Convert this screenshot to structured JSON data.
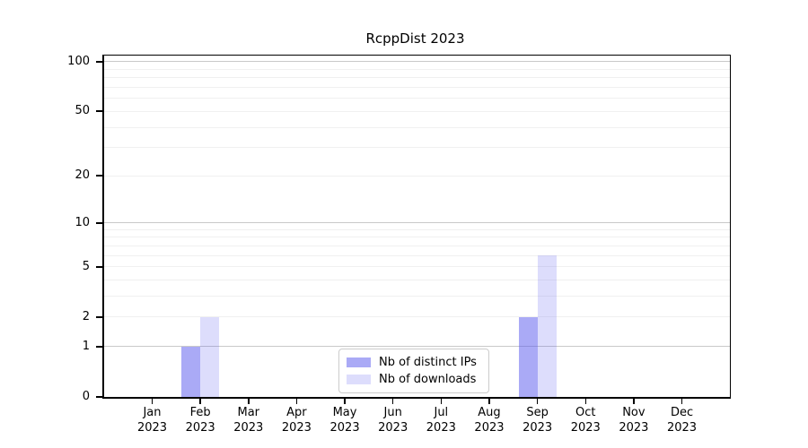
{
  "chart_data": {
    "type": "bar",
    "title": "RcppDist 2023",
    "categories": [
      {
        "month": "Jan",
        "year": "2023"
      },
      {
        "month": "Feb",
        "year": "2023"
      },
      {
        "month": "Mar",
        "year": "2023"
      },
      {
        "month": "Apr",
        "year": "2023"
      },
      {
        "month": "May",
        "year": "2023"
      },
      {
        "month": "Jun",
        "year": "2023"
      },
      {
        "month": "Jul",
        "year": "2023"
      },
      {
        "month": "Aug",
        "year": "2023"
      },
      {
        "month": "Sep",
        "year": "2023"
      },
      {
        "month": "Oct",
        "year": "2023"
      },
      {
        "month": "Nov",
        "year": "2023"
      },
      {
        "month": "Dec",
        "year": "2023"
      }
    ],
    "series": [
      {
        "name": "Nb of distinct IPs",
        "color": "rgba(85,85,238,0.5)",
        "values": [
          0,
          1,
          0,
          0,
          0,
          0,
          0,
          0,
          2,
          0,
          0,
          0
        ]
      },
      {
        "name": "Nb of downloads",
        "color": "rgba(85,85,238,0.2)",
        "values": [
          0,
          2,
          0,
          0,
          0,
          0,
          0,
          0,
          6,
          0,
          0,
          0
        ]
      }
    ],
    "y_axis": {
      "scale": "log10(1+y)",
      "ticks": [
        0,
        1,
        2,
        5,
        10,
        20,
        50,
        100
      ],
      "max": 109,
      "gridlines_major": [
        1,
        10,
        100
      ],
      "gridlines_minor": [
        2,
        3,
        4,
        5,
        6,
        7,
        8,
        9,
        20,
        30,
        40,
        50,
        60,
        70,
        80,
        90
      ]
    },
    "xlabel": "",
    "ylabel": "",
    "grid": true,
    "legend_position": "lower center",
    "colors": {
      "grid_major": "#c9c9c9",
      "grid_minor": "#f0f0f0",
      "spine": "#000000",
      "bar_base": "#5555ee"
    }
  }
}
